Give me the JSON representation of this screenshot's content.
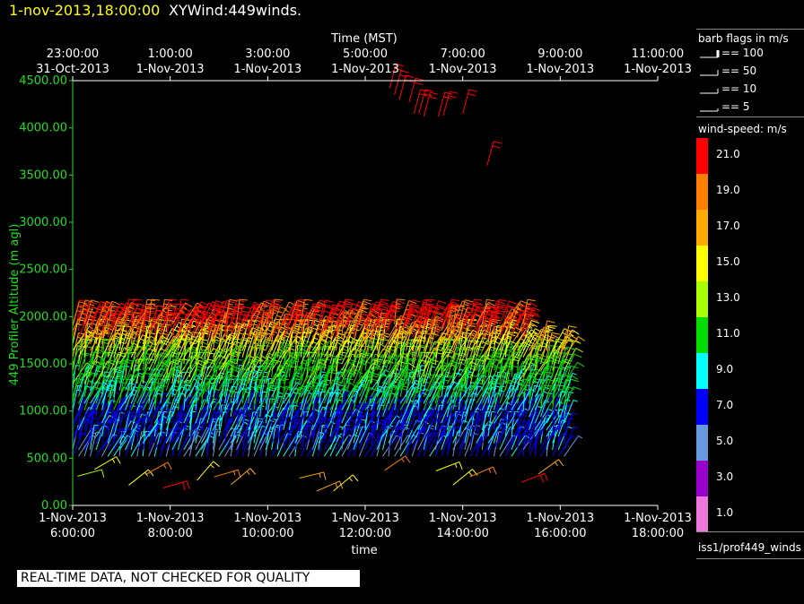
{
  "header": {
    "date_time": "1-nov-2013,18:00:00",
    "title": "XYWind:449winds."
  },
  "warning": "REAL-TIME DATA, NOT CHECKED FOR QUALITY",
  "legend": {
    "barb_title": "barb flags in m/s",
    "barb_flags": [
      "== 100",
      "== 50",
      "== 10",
      "== 5"
    ],
    "speed_title": "wind-speed: m/s",
    "speed_bins": [
      {
        "label": "21.0",
        "color": "#ff0000"
      },
      {
        "label": "19.0",
        "color": "#ff7f00"
      },
      {
        "label": "17.0",
        "color": "#ffaa00"
      },
      {
        "label": "15.0",
        "color": "#ffff00"
      },
      {
        "label": "13.0",
        "color": "#aaff00"
      },
      {
        "label": "11.0",
        "color": "#00dd00"
      },
      {
        "label": "9.0",
        "color": "#00ffff"
      },
      {
        "label": "7.0",
        "color": "#0000ff"
      },
      {
        "label": "5.0",
        "color": "#6699dd"
      },
      {
        "label": "3.0",
        "color": "#9900cc"
      },
      {
        "label": "1.0",
        "color": "#ee77dd"
      }
    ],
    "source": "iss1/prof449_winds"
  },
  "chart_data": {
    "type": "scatter",
    "title": "",
    "xlabel": "time",
    "x2label": "Time (MST)",
    "ylabel": "449 Profiler Altitude (m agl)",
    "ylim": [
      0,
      4500
    ],
    "yticks": [
      "0.00",
      "500.00",
      "1000.00",
      "1500.00",
      "2000.00",
      "2500.00",
      "3000.00",
      "3500.00",
      "4000.00",
      "4500.00"
    ],
    "xticks_bottom": [
      [
        "1-Nov-2013",
        "6:00:00"
      ],
      [
        "1-Nov-2013",
        "8:00:00"
      ],
      [
        "1-Nov-2013",
        "10:00:00"
      ],
      [
        "1-Nov-2013",
        "12:00:00"
      ],
      [
        "1-Nov-2013",
        "14:00:00"
      ],
      [
        "1-Nov-2013",
        "16:00:00"
      ],
      [
        "1-Nov-2013",
        "18:00:00"
      ]
    ],
    "xticks_top": [
      [
        "23:00:00",
        "31-Oct-2013"
      ],
      [
        "1:00:00",
        "1-Nov-2013"
      ],
      [
        "3:00:00",
        "1-Nov-2013"
      ],
      [
        "5:00:00",
        "1-Nov-2013"
      ],
      [
        "7:00:00",
        "1-Nov-2013"
      ],
      [
        "9:00:00",
        "1-Nov-2013"
      ],
      [
        "11:00:00",
        "1-Nov-2013"
      ]
    ],
    "xlim_hours_utc": [
      6,
      18
    ],
    "encoding": "wind barbs at (time, altitude), colored by wind speed (m/s)",
    "series": [
      {
        "x": [
          6.0,
          6.2,
          6.5,
          6.8,
          7.2,
          7.6,
          8.0,
          8.4,
          8.8,
          9.2,
          9.6,
          10.0,
          10.4,
          10.8,
          11.2,
          11.6,
          12.0,
          12.4,
          12.8,
          13.2,
          13.6,
          14.0,
          14.4,
          14.8,
          15.2,
          15.6,
          16.0
        ],
        "y": [
          1900,
          1900,
          1900,
          1850,
          1880,
          1860,
          1880,
          1850,
          1860,
          1850,
          1870,
          1880,
          1850,
          1880,
          1870,
          1880,
          1880,
          1870,
          1880,
          1860,
          1870,
          1880,
          1860,
          1850,
          1820,
          1700,
          1600
        ],
        "speed": [
          19,
          20,
          21,
          21,
          22,
          21,
          20,
          21,
          22,
          21,
          22,
          20,
          21,
          22,
          21,
          22,
          21,
          22,
          20,
          21,
          22,
          21,
          20,
          21,
          21,
          19,
          18
        ]
      },
      {
        "x": [
          12.5,
          12.6,
          12.7,
          12.9,
          13.0,
          13.1,
          13.2,
          13.5,
          13.6,
          14.0,
          14.5
        ],
        "y": [
          4420,
          4350,
          4300,
          4270,
          4150,
          4150,
          4120,
          4120,
          4130,
          4150,
          3600
        ],
        "speed": [
          22,
          22,
          22,
          21,
          22,
          21,
          22,
          21,
          22,
          22,
          21
        ]
      }
    ]
  }
}
